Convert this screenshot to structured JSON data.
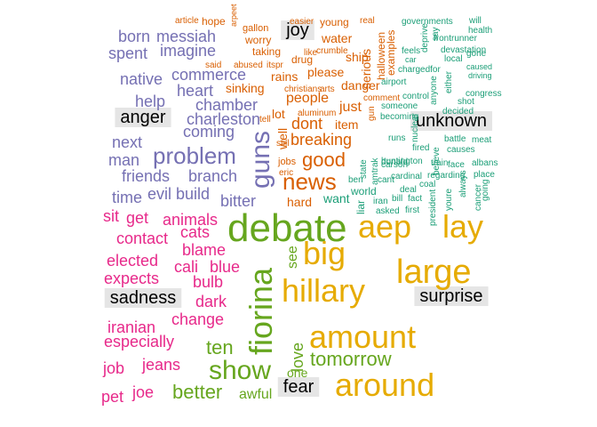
{
  "chart_data": {
    "type": "wordcloud",
    "title": "",
    "colors": {
      "anger": "#7570B3",
      "joy": "#D95F02",
      "unknown": "#1B9E77",
      "sadness": "#E7298A",
      "fear": "#66A61E",
      "surprise": "#E6AB02",
      "group_label_bg": "#E5E5E5",
      "group_label_text": "#000000"
    },
    "group_labels": [
      "anger",
      "joy",
      "unknown",
      "sadness",
      "fear",
      "surprise"
    ],
    "groups": [
      {
        "name": "anger",
        "words": [
          {
            "w": "born",
            "s": 18
          },
          {
            "w": "messiah",
            "s": 18
          },
          {
            "w": "spent",
            "s": 18
          },
          {
            "w": "imagine",
            "s": 18
          },
          {
            "w": "native",
            "s": 18
          },
          {
            "w": "commerce",
            "s": 18
          },
          {
            "w": "heart",
            "s": 18
          },
          {
            "w": "help",
            "s": 18
          },
          {
            "w": "chamber",
            "s": 18
          },
          {
            "w": "charleston",
            "s": 18
          },
          {
            "w": "coming",
            "s": 18
          },
          {
            "w": "next",
            "s": 18
          },
          {
            "w": "problem",
            "s": 26
          },
          {
            "w": "man",
            "s": 18
          },
          {
            "w": "friends",
            "s": 18
          },
          {
            "w": "branch",
            "s": 18
          },
          {
            "w": "time",
            "s": 18
          },
          {
            "w": "evil",
            "s": 18
          },
          {
            "w": "build",
            "s": 18
          },
          {
            "w": "bitter",
            "s": 18
          },
          {
            "w": "guns",
            "s": 30
          }
        ]
      },
      {
        "name": "joy",
        "words": [
          {
            "w": "article",
            "s": 10
          },
          {
            "w": "hope",
            "s": 12
          },
          {
            "w": "gallon",
            "s": 11
          },
          {
            "w": "easier",
            "s": 10
          },
          {
            "w": "young",
            "s": 12
          },
          {
            "w": "real",
            "s": 10
          },
          {
            "w": "arpeet",
            "s": 9
          },
          {
            "w": "worry",
            "s": 12
          },
          {
            "w": "water",
            "s": 14
          },
          {
            "w": "drug",
            "s": 12
          },
          {
            "w": "said",
            "s": 10
          },
          {
            "w": "abused",
            "s": 10
          },
          {
            "w": "itspr",
            "s": 10
          },
          {
            "w": "like",
            "s": 10
          },
          {
            "w": "taking",
            "s": 12
          },
          {
            "w": "crumble",
            "s": 10
          },
          {
            "w": "ship",
            "s": 14
          },
          {
            "w": "please",
            "s": 14
          },
          {
            "w": "rains",
            "s": 14
          },
          {
            "w": "christians",
            "s": 10
          },
          {
            "w": "arts",
            "s": 10
          },
          {
            "w": "sinking",
            "s": 14
          },
          {
            "w": "danger",
            "s": 14
          },
          {
            "w": "people",
            "s": 16
          },
          {
            "w": "comment",
            "s": 10
          },
          {
            "w": "just",
            "s": 16
          },
          {
            "w": "lot",
            "s": 14
          },
          {
            "w": "aluminum",
            "s": 10
          },
          {
            "w": "tell",
            "s": 10
          },
          {
            "w": "dont",
            "s": 18
          },
          {
            "w": "item",
            "s": 14
          },
          {
            "w": "serious",
            "s": 14
          },
          {
            "w": "halloween",
            "s": 12
          },
          {
            "w": "examples",
            "s": 12
          },
          {
            "w": "well",
            "s": 14
          },
          {
            "w": "still",
            "s": 10
          },
          {
            "w": "breaking",
            "s": 18
          },
          {
            "w": "good",
            "s": 22
          },
          {
            "w": "jobs",
            "s": 11
          },
          {
            "w": "eric",
            "s": 10
          },
          {
            "w": "news",
            "s": 26
          },
          {
            "w": "hard",
            "s": 14
          },
          {
            "w": "gun",
            "s": 10
          }
        ]
      },
      {
        "name": "unknown",
        "words": [
          {
            "w": "governments",
            "s": 10
          },
          {
            "w": "will",
            "s": 10
          },
          {
            "w": "health",
            "s": 10
          },
          {
            "w": "say",
            "s": 10
          },
          {
            "w": "frontrunner",
            "s": 10
          },
          {
            "w": "deprive",
            "s": 10
          },
          {
            "w": "devastation",
            "s": 10
          },
          {
            "w": "feels",
            "s": 10
          },
          {
            "w": "car",
            "s": 9
          },
          {
            "w": "local",
            "s": 10
          },
          {
            "w": "gone",
            "s": 10
          },
          {
            "w": "caused",
            "s": 9
          },
          {
            "w": "driving",
            "s": 9
          },
          {
            "w": "chargedfor",
            "s": 10
          },
          {
            "w": "either",
            "s": 10
          },
          {
            "w": "anyone",
            "s": 10
          },
          {
            "w": "congress",
            "s": 10
          },
          {
            "w": "control",
            "s": 10
          },
          {
            "w": "shot",
            "s": 10
          },
          {
            "w": "airport",
            "s": 10
          },
          {
            "w": "decided",
            "s": 10
          },
          {
            "w": "someone",
            "s": 10
          },
          {
            "w": "becoming",
            "s": 10
          },
          {
            "w": "runs",
            "s": 10
          },
          {
            "w": "battle",
            "s": 10
          },
          {
            "w": "nuclear",
            "s": 10
          },
          {
            "w": "fired",
            "s": 10
          },
          {
            "w": "causes",
            "s": 10
          },
          {
            "w": "meat",
            "s": 10
          },
          {
            "w": "donald",
            "s": 10
          },
          {
            "w": "huntington",
            "s": 10
          },
          {
            "w": "believe",
            "s": 10
          },
          {
            "w": "carson",
            "s": 10
          },
          {
            "w": "train",
            "s": 10
          },
          {
            "w": "albans",
            "s": 10
          },
          {
            "w": "face",
            "s": 10
          },
          {
            "w": "state",
            "s": 10
          },
          {
            "w": "amtrak",
            "s": 10
          },
          {
            "w": "cardinal",
            "s": 10
          },
          {
            "w": "coal",
            "s": 10
          },
          {
            "w": "regarding",
            "s": 10
          },
          {
            "w": "place",
            "s": 10
          },
          {
            "w": "ben",
            "s": 10
          },
          {
            "w": "cant",
            "s": 10
          },
          {
            "w": "world",
            "s": 12
          },
          {
            "w": "liar",
            "s": 12
          },
          {
            "w": "deal",
            "s": 10
          },
          {
            "w": "bill",
            "s": 10
          },
          {
            "w": "fact",
            "s": 10
          },
          {
            "w": "always",
            "s": 10
          },
          {
            "w": "cancer",
            "s": 10
          },
          {
            "w": "going",
            "s": 10
          },
          {
            "w": "want",
            "s": 14
          },
          {
            "w": "iran",
            "s": 10
          },
          {
            "w": "asked",
            "s": 10
          },
          {
            "w": "first",
            "s": 10
          },
          {
            "w": "president",
            "s": 10
          },
          {
            "w": "youre",
            "s": 10
          }
        ]
      },
      {
        "name": "sadness",
        "words": [
          {
            "w": "sit",
            "s": 18
          },
          {
            "w": "get",
            "s": 18
          },
          {
            "w": "animals",
            "s": 18
          },
          {
            "w": "contact",
            "s": 18
          },
          {
            "w": "cats",
            "s": 18
          },
          {
            "w": "blame",
            "s": 18
          },
          {
            "w": "elected",
            "s": 18
          },
          {
            "w": "cali",
            "s": 18
          },
          {
            "w": "blue",
            "s": 18
          },
          {
            "w": "expects",
            "s": 18
          },
          {
            "w": "bulb",
            "s": 18
          },
          {
            "w": "dark",
            "s": 18
          },
          {
            "w": "change",
            "s": 18
          },
          {
            "w": "iranian",
            "s": 18
          },
          {
            "w": "especially",
            "s": 18
          },
          {
            "w": "job",
            "s": 18
          },
          {
            "w": "jeans",
            "s": 18
          },
          {
            "w": "pet",
            "s": 18
          },
          {
            "w": "joe",
            "s": 18
          }
        ]
      },
      {
        "name": "fear",
        "words": [
          {
            "w": "debate",
            "s": 44
          },
          {
            "w": "fiorina",
            "s": 36
          },
          {
            "w": "see",
            "s": 16
          },
          {
            "w": "love",
            "s": 18
          },
          {
            "w": "ten",
            "s": 22
          },
          {
            "w": "show",
            "s": 30
          },
          {
            "w": "tomorrow",
            "s": 22
          },
          {
            "w": "one",
            "s": 14
          },
          {
            "w": "better",
            "s": 22
          },
          {
            "w": "awful",
            "s": 16
          }
        ]
      },
      {
        "name": "surprise",
        "words": [
          {
            "w": "aep",
            "s": 36
          },
          {
            "w": "lay",
            "s": 36
          },
          {
            "w": "big",
            "s": 36
          },
          {
            "w": "large",
            "s": 38
          },
          {
            "w": "hillary",
            "s": 36
          },
          {
            "w": "amount",
            "s": 36
          },
          {
            "w": "around",
            "s": 36
          }
        ]
      }
    ]
  }
}
